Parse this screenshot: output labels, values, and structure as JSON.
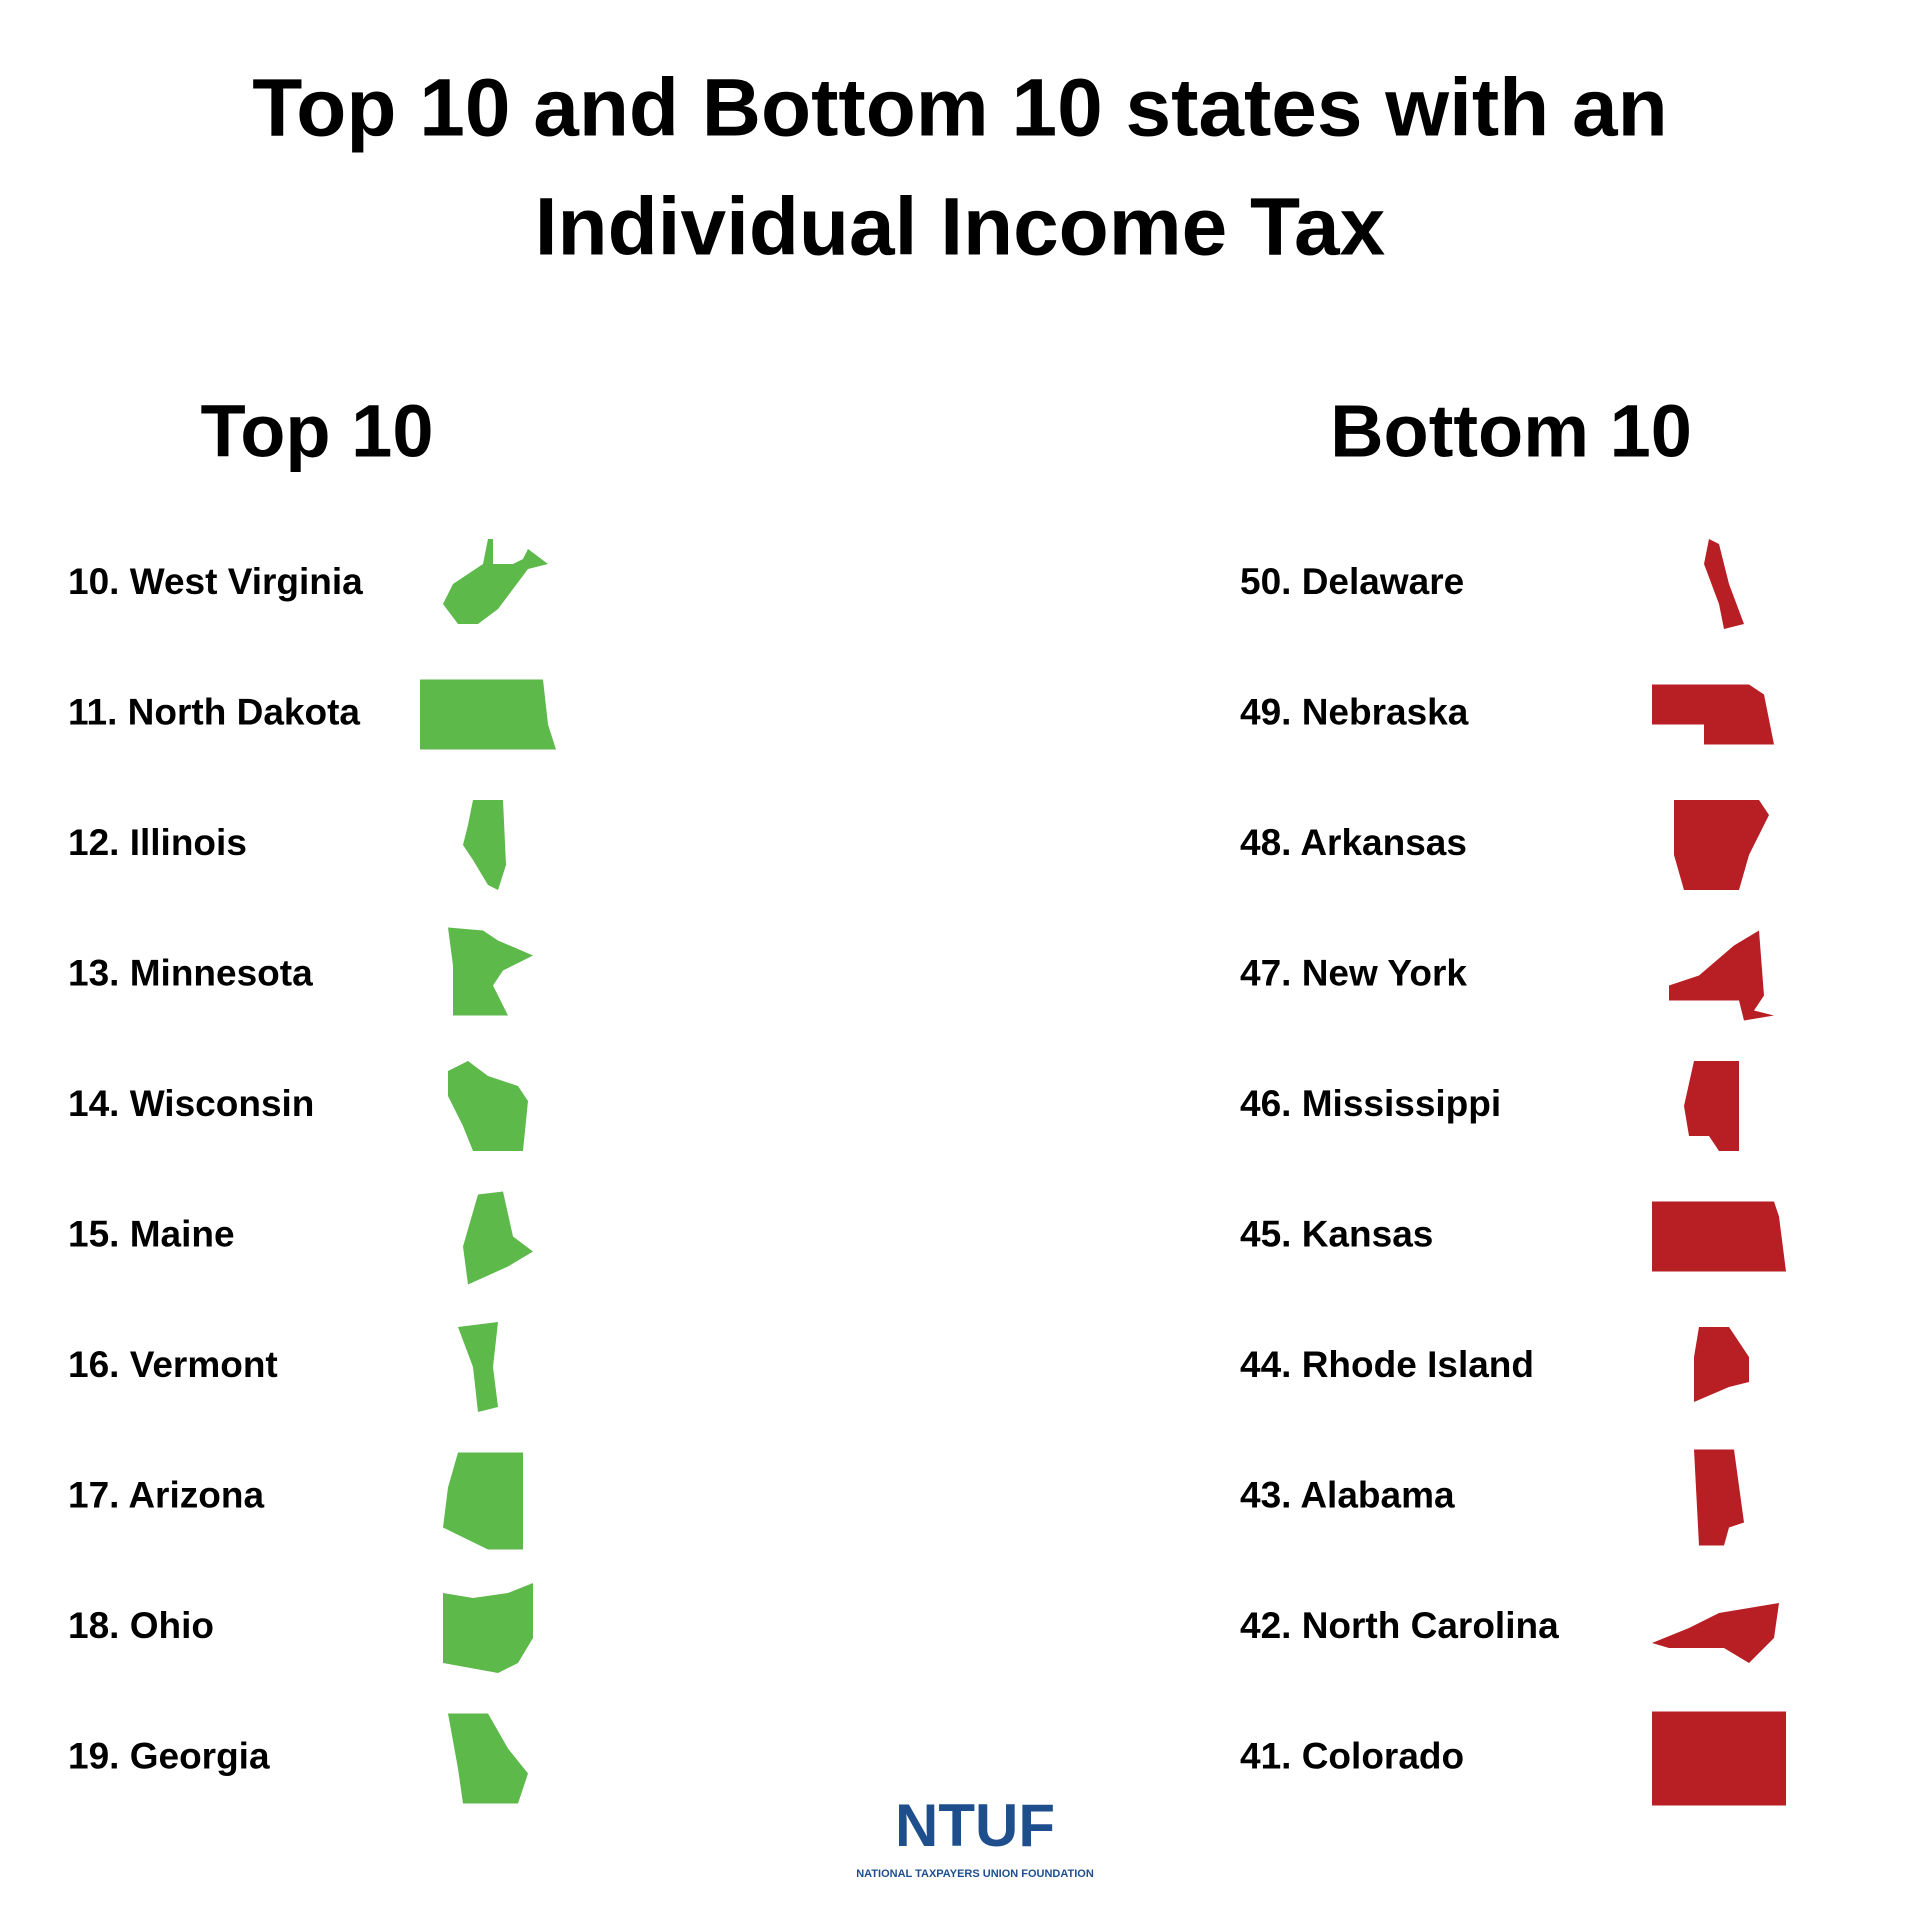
{
  "header": {
    "title_lines": [
      "Top 10 and Bottom 10 states with an",
      "Individual Income Tax"
    ]
  },
  "top": {
    "heading": "Top 10",
    "items": [
      "10. West Virginia",
      "11. North Dakota",
      "12. Illinois",
      "13. Minnesota",
      "14. Wisconsin",
      "15. Maine",
      "16. Vermont",
      "17. Arizona",
      "18. Ohio",
      "19. Georgia"
    ]
  },
  "bottom": {
    "heading": "Bottom 10",
    "items": [
      "50. Delaware",
      "49. Nebraska",
      "48. Arkansas",
      "47. New York",
      "46. Mississippi",
      "45. Kansas",
      "44. Rhode Island",
      "43. Alabama",
      "42. North Carolina",
      "41. Colorado"
    ]
  },
  "logo": {
    "mark": "NTUF",
    "name": "NATIONAL TAXPAYERS UNION FOUNDATION"
  }
}
